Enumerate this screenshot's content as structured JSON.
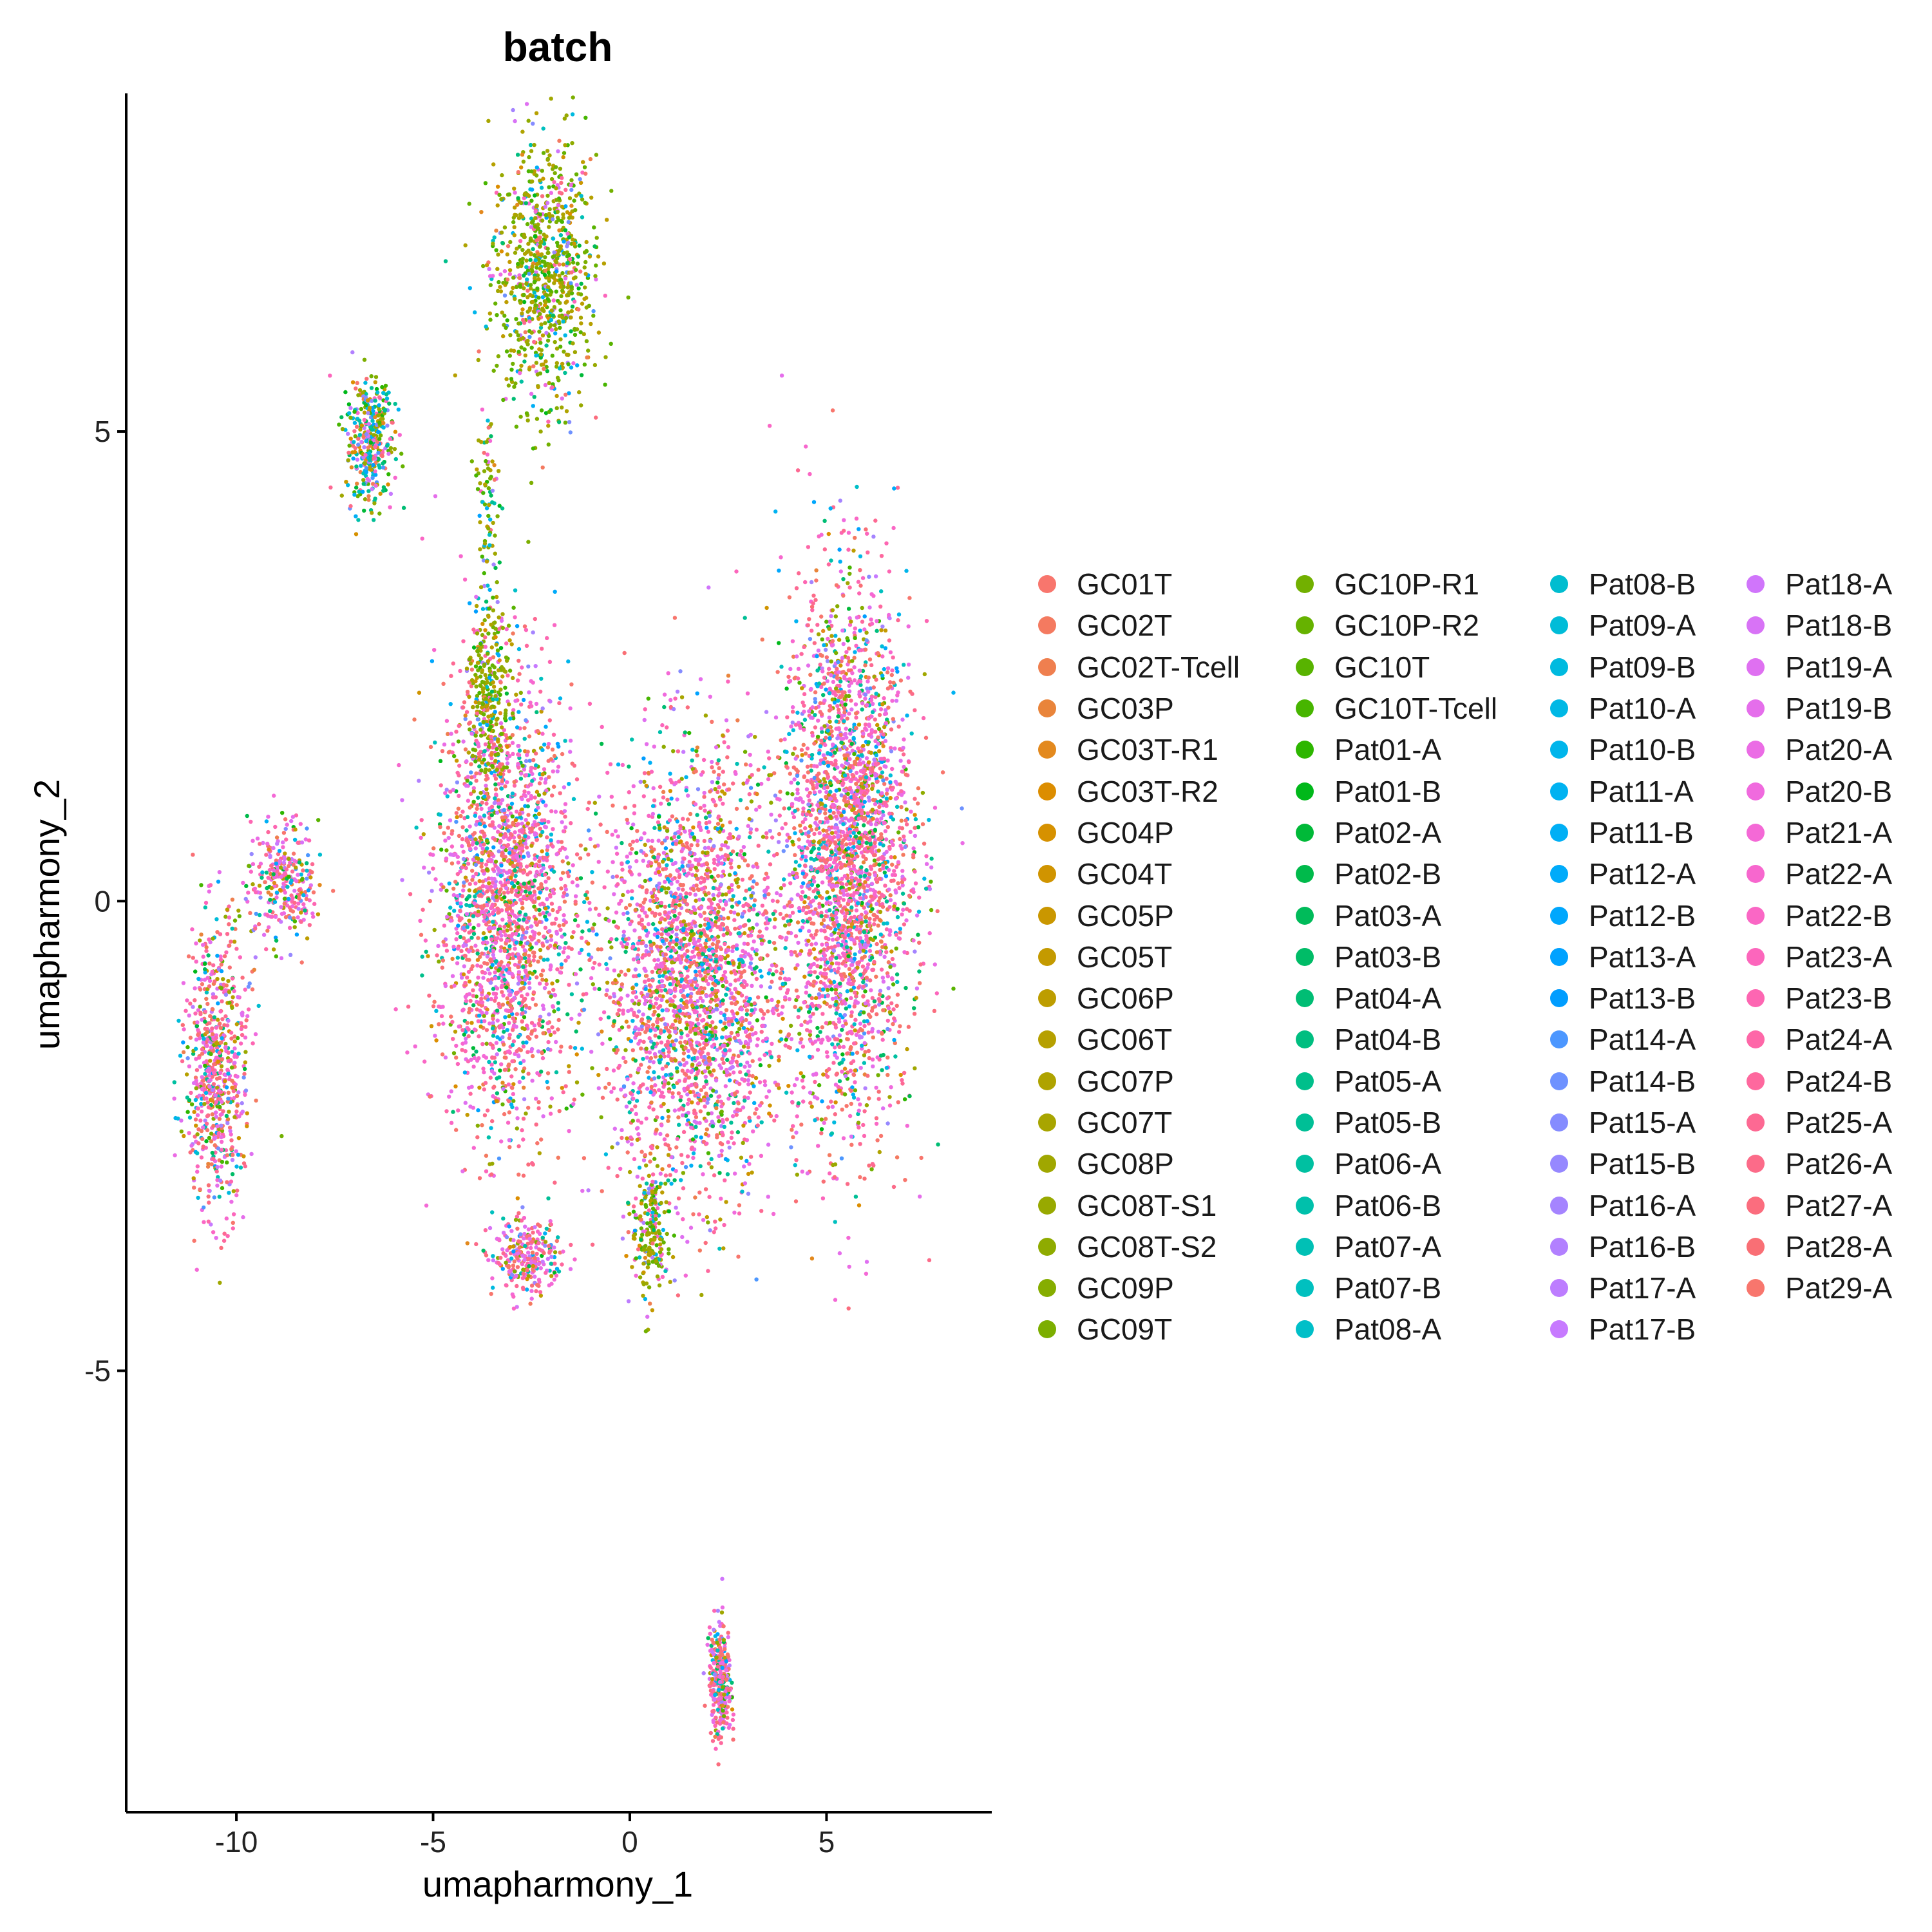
{
  "chart_data": {
    "type": "scatter",
    "title": "batch",
    "xlabel": "umapharmony_1",
    "ylabel": "umapharmony_2",
    "xlim": [
      -12.8,
      9.2
    ],
    "ylim": [
      -9.7,
      8.6
    ],
    "x_ticks": [
      -10,
      -5,
      0,
      5
    ],
    "x_tick_labels": [
      "-10",
      "-5",
      "0",
      "5"
    ],
    "y_ticks": [
      -5,
      0,
      5
    ],
    "y_tick_labels": [
      "-5",
      "0",
      "5"
    ],
    "grid": false,
    "legend_position": "right",
    "legend_columns": 4,
    "series": [
      {
        "name": "GC01T",
        "color": "#F8766D"
      },
      {
        "name": "GC02T",
        "color": "#F47A60"
      },
      {
        "name": "GC02T-Tcell",
        "color": "#EF7F4F"
      },
      {
        "name": "GC03P",
        "color": "#E9843A"
      },
      {
        "name": "GC03T-R1",
        "color": "#E3891E"
      },
      {
        "name": "GC03T-R2",
        "color": "#DC8D00"
      },
      {
        "name": "GC04P",
        "color": "#D69100"
      },
      {
        "name": "GC04T",
        "color": "#D09400"
      },
      {
        "name": "GC05P",
        "color": "#CA9700"
      },
      {
        "name": "GC05T",
        "color": "#C49A00"
      },
      {
        "name": "GC06P",
        "color": "#BD9D00"
      },
      {
        "name": "GC06T",
        "color": "#B6A000"
      },
      {
        "name": "GC07P",
        "color": "#AFA300"
      },
      {
        "name": "GC07T",
        "color": "#A8A500"
      },
      {
        "name": "GC08P",
        "color": "#A0A700"
      },
      {
        "name": "GC08T-S1",
        "color": "#98A900"
      },
      {
        "name": "GC08T-S2",
        "color": "#8FAB00"
      },
      {
        "name": "GC09P",
        "color": "#86AD00"
      },
      {
        "name": "GC09T",
        "color": "#7CAE00"
      },
      {
        "name": "GC10P-R1",
        "color": "#72B000"
      },
      {
        "name": "GC10P-R2",
        "color": "#66B200"
      },
      {
        "name": "GC10T",
        "color": "#58B300"
      },
      {
        "name": "GC10T-Tcell",
        "color": "#47B500"
      },
      {
        "name": "Pat01-A",
        "color": "#2DB600"
      },
      {
        "name": "Pat01-B",
        "color": "#00B81A"
      },
      {
        "name": "Pat02-A",
        "color": "#00B938"
      },
      {
        "name": "Pat02-B",
        "color": "#00BA4B"
      },
      {
        "name": "Pat03-A",
        "color": "#00BB5A"
      },
      {
        "name": "Pat03-B",
        "color": "#00BC67"
      },
      {
        "name": "Pat04-A",
        "color": "#00BD74"
      },
      {
        "name": "Pat04-B",
        "color": "#00BE80"
      },
      {
        "name": "Pat05-A",
        "color": "#00BF8B"
      },
      {
        "name": "Pat05-B",
        "color": "#00BF96"
      },
      {
        "name": "Pat06-A",
        "color": "#00C0A1"
      },
      {
        "name": "Pat06-B",
        "color": "#00C0AB"
      },
      {
        "name": "Pat07-A",
        "color": "#00C0B5"
      },
      {
        "name": "Pat07-B",
        "color": "#00C0BF"
      },
      {
        "name": "Pat08-A",
        "color": "#00BFC8"
      },
      {
        "name": "Pat08-B",
        "color": "#00BDD0"
      },
      {
        "name": "Pat09-A",
        "color": "#00BCD8"
      },
      {
        "name": "Pat09-B",
        "color": "#00BADF"
      },
      {
        "name": "Pat10-A",
        "color": "#00B8E5"
      },
      {
        "name": "Pat10-B",
        "color": "#00B5EB"
      },
      {
        "name": "Pat11-A",
        "color": "#00B2F1"
      },
      {
        "name": "Pat11-B",
        "color": "#00AFF5"
      },
      {
        "name": "Pat12-A",
        "color": "#00ABFA"
      },
      {
        "name": "Pat12-B",
        "color": "#00A7FD"
      },
      {
        "name": "Pat13-A",
        "color": "#00A2FF"
      },
      {
        "name": "Pat13-B",
        "color": "#009DFF"
      },
      {
        "name": "Pat14-A",
        "color": "#4C97FF"
      },
      {
        "name": "Pat14-B",
        "color": "#6E92FF"
      },
      {
        "name": "Pat15-A",
        "color": "#858CFF"
      },
      {
        "name": "Pat15-B",
        "color": "#9688FF"
      },
      {
        "name": "Pat16-A",
        "color": "#A584FF"
      },
      {
        "name": "Pat16-B",
        "color": "#B280FF"
      },
      {
        "name": "Pat17-A",
        "color": "#BD7DFF"
      },
      {
        "name": "Pat17-B",
        "color": "#C77AFF"
      },
      {
        "name": "Pat18-A",
        "color": "#D075FB"
      },
      {
        "name": "Pat18-B",
        "color": "#D873F6"
      },
      {
        "name": "Pat19-A",
        "color": "#DF70F1"
      },
      {
        "name": "Pat19-B",
        "color": "#E56EEB"
      },
      {
        "name": "Pat20-A",
        "color": "#EB6CE5"
      },
      {
        "name": "Pat20-B",
        "color": "#F06ADE"
      },
      {
        "name": "Pat21-A",
        "color": "#F469D6"
      },
      {
        "name": "Pat22-A",
        "color": "#F767CE"
      },
      {
        "name": "Pat22-B",
        "color": "#FA67C5"
      },
      {
        "name": "Pat23-A",
        "color": "#FC66BC"
      },
      {
        "name": "Pat23-B",
        "color": "#FD66B2"
      },
      {
        "name": "Pat24-A",
        "color": "#FE67A8"
      },
      {
        "name": "Pat24-B",
        "color": "#FE689E"
      },
      {
        "name": "Pat25-A",
        "color": "#FD6993"
      },
      {
        "name": "Pat26-A",
        "color": "#FC6B89"
      },
      {
        "name": "Pat27-A",
        "color": "#FB6D7E"
      },
      {
        "name": "Pat28-A",
        "color": "#F96F75"
      },
      {
        "name": "Pat29-A",
        "color": "#F8766D"
      }
    ],
    "clusters": [
      {
        "cx": -2.2,
        "cy": 6.7,
        "sx": 1.2,
        "sy": 1.3,
        "n": 900,
        "dominant": "olive"
      },
      {
        "cx": -6.6,
        "cy": 4.9,
        "sx": 0.55,
        "sy": 0.6,
        "n": 380,
        "dominant": "mixed"
      },
      {
        "cx": -3.6,
        "cy": 4.2,
        "sx": 0.25,
        "sy": 1.0,
        "n": 90,
        "dominant": "olive"
      },
      {
        "cx": -3.2,
        "cy": 0.0,
        "sx": 1.6,
        "sy": 2.2,
        "n": 2200,
        "dominant": "pink"
      },
      {
        "cx": 1.6,
        "cy": -0.8,
        "sx": 2.0,
        "sy": 2.1,
        "n": 2600,
        "dominant": "pink"
      },
      {
        "cx": 5.5,
        "cy": 0.5,
        "sx": 1.5,
        "sy": 2.6,
        "n": 2800,
        "dominant": "pink"
      },
      {
        "cx": -10.5,
        "cy": -1.8,
        "sx": 0.7,
        "sy": 1.4,
        "n": 700,
        "dominant": "pink"
      },
      {
        "cx": -8.8,
        "cy": 0.2,
        "sx": 0.8,
        "sy": 0.6,
        "n": 300,
        "dominant": "pink"
      },
      {
        "cx": -2.6,
        "cy": -3.8,
        "sx": 0.8,
        "sy": 0.35,
        "n": 260,
        "dominant": "pink"
      },
      {
        "cx": 2.3,
        "cy": -8.3,
        "sx": 0.25,
        "sy": 0.55,
        "n": 320,
        "dominant": "pink"
      },
      {
        "cx": -3.6,
        "cy": 2.2,
        "sx": 0.5,
        "sy": 0.8,
        "n": 260,
        "dominant": "olive"
      },
      {
        "cx": 0.5,
        "cy": -3.5,
        "sx": 0.4,
        "sy": 0.7,
        "n": 200,
        "dominant": "olive"
      }
    ]
  }
}
